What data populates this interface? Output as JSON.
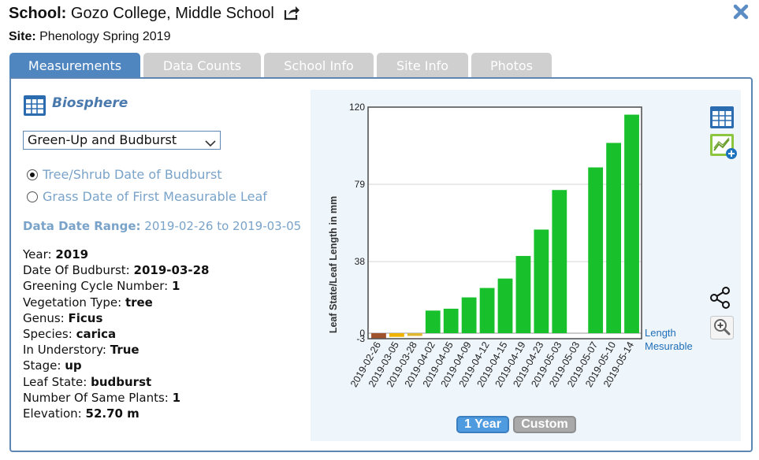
{
  "header": {
    "school_label": "School:",
    "school_name": "Gozo College, Middle School",
    "site_label": "Site:",
    "site_name": "Phenology Spring 2019"
  },
  "tabs": [
    "Measurements",
    "Data Counts",
    "School Info",
    "Site Info",
    "Photos"
  ],
  "active_tab": 0,
  "left": {
    "protocol_title": "Biosphere",
    "dropdown_value": "Green-Up and Budburst",
    "radios": [
      {
        "label": "Tree/Shrub Date of Budburst",
        "checked": true
      },
      {
        "label": "Grass Date of First Measurable Leaf",
        "checked": false
      }
    ],
    "range_label": "Data Date Range:",
    "range_value": "2019-02-26 to 2019-03-05",
    "details": [
      {
        "label": "Year:",
        "value": "2019"
      },
      {
        "label": "Date Of Budburst:",
        "value": "2019-03-28"
      },
      {
        "label": "Greening Cycle Number:",
        "value": "1"
      },
      {
        "label": "Vegetation Type:",
        "value": "tree"
      },
      {
        "label": "Genus:",
        "value": "Ficus"
      },
      {
        "label": "Species:",
        "value": "carica"
      },
      {
        "label": "In Understory:",
        "value": "True"
      },
      {
        "label": "Stage:",
        "value": "up"
      },
      {
        "label": "Leaf State:",
        "value": "budburst"
      },
      {
        "label": "Number Of Same Plants:",
        "value": "1"
      },
      {
        "label": "Elevation:",
        "value": "52.70 m"
      }
    ]
  },
  "icons": [
    "share-icon",
    "close-icon",
    "table-icon",
    "trend-add-icon",
    "share-nodes-icon",
    "zoom-icon",
    "chevron-down-icon"
  ],
  "buttons": {
    "year": "1 Year",
    "custom": "Custom"
  },
  "chart_data": {
    "type": "bar",
    "ylabel": "Leaf State/Leaf Length in mm",
    "ylim": [
      -3,
      120
    ],
    "yticks": [
      -3,
      0,
      38,
      79,
      120
    ],
    "categories": [
      "2019-02-26",
      "2019-03-05",
      "2019-03-28",
      "2019-04-02",
      "2019-04-05",
      "2019-04-09",
      "2019-04-12",
      "2019-04-15",
      "2019-04-19",
      "2019-04-23",
      "2019-05-03",
      "2019-05-03",
      "2019-05-07",
      "2019-05-10",
      "2019-05-14"
    ],
    "values": [
      -3,
      -2,
      -1.5,
      12,
      13,
      19,
      24,
      29,
      41,
      55,
      76,
      0,
      88,
      101,
      116
    ],
    "colors": [
      "#a0522d",
      "#f0b400",
      "#e0b830",
      "#18c02c",
      "#18c02c",
      "#18c02c",
      "#18c02c",
      "#18c02c",
      "#18c02c",
      "#18c02c",
      "#18c02c",
      "#18c02c",
      "#18c02c",
      "#18c02c",
      "#18c02c"
    ],
    "legend": [
      "Length",
      "Mesurable"
    ],
    "legend_color": "#1f6fb8",
    "grid": true
  }
}
